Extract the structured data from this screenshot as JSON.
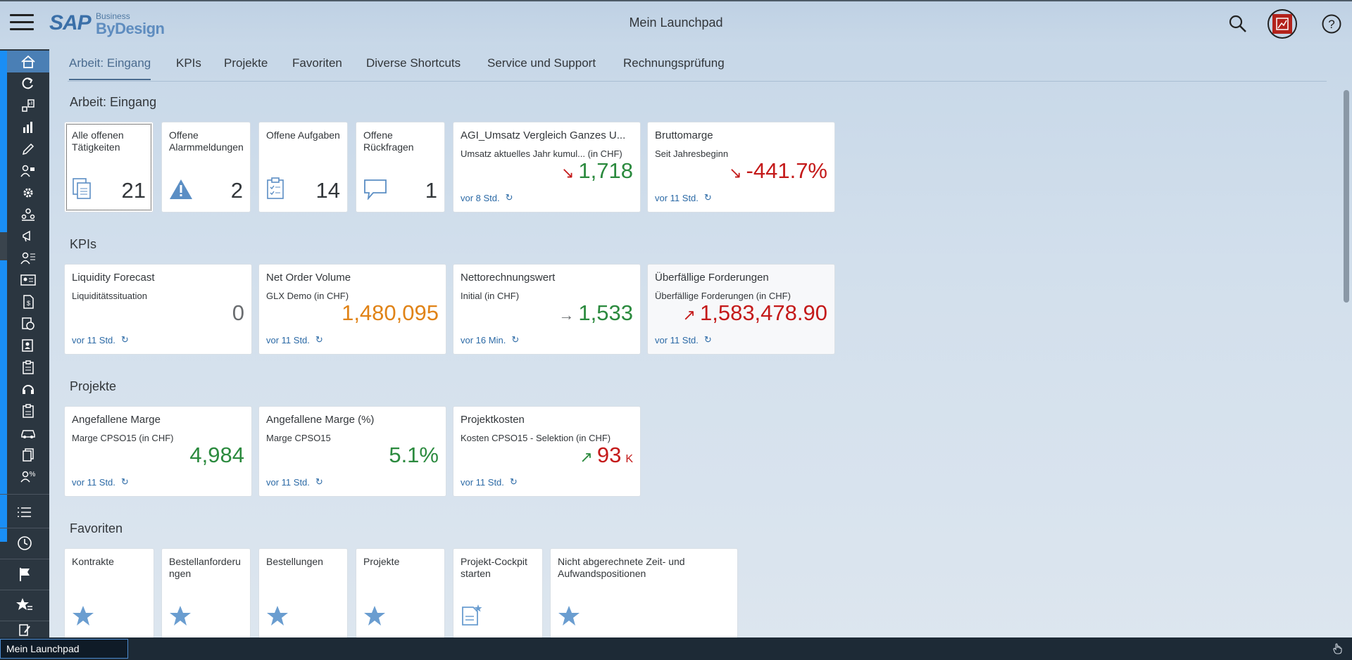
{
  "header": {
    "logo_sap": "SAP",
    "logo_business": "Business",
    "logo_bydesign": "ByDesign",
    "title": "Mein Launchpad"
  },
  "tabs": [
    {
      "label": "Arbeit: Eingang",
      "active": true
    },
    {
      "label": "KPIs"
    },
    {
      "label": "Projekte"
    },
    {
      "label": "Favoriten"
    },
    {
      "label": "Diverse Shortcuts"
    },
    {
      "label": "Service und Support"
    },
    {
      "label": "Rechnungsprüfung"
    }
  ],
  "sections": {
    "arbeit": {
      "title": "Arbeit: Eingang",
      "tiles": [
        {
          "title": "Alle offenen Tätigkeiten",
          "count": "21"
        },
        {
          "title": "Offene Alarmmeldungen",
          "count": "2"
        },
        {
          "title": "Offene Aufgaben",
          "count": "14"
        },
        {
          "title": "Offene Rückfragen",
          "count": "1"
        },
        {
          "title": "AGI_Umsatz Vergleich Ganzes U...",
          "subtitle": "Umsatz aktuelles Jahr kumul... (in CHF)",
          "value": "1,718",
          "footer": "vor 8 Std."
        },
        {
          "title": "Bruttomarge",
          "subtitle": "Seit Jahresbeginn",
          "value": "-441.7%",
          "footer": "vor 11 Std."
        }
      ]
    },
    "kpis": {
      "title": "KPIs",
      "tiles": [
        {
          "title": "Liquidity Forecast",
          "subtitle": "Liquiditätssituation",
          "value": "0",
          "footer": "vor 11 Std."
        },
        {
          "title": "Net Order Volume",
          "subtitle": "GLX Demo (in CHF)",
          "value": "1,480,095",
          "footer": "vor 11 Std."
        },
        {
          "title": "Nettorechnungswert",
          "subtitle": "Initial (in CHF)",
          "value": "1,533",
          "footer": "vor 16 Min."
        },
        {
          "title": "Überfällige Forderungen",
          "subtitle": "Überfällige Forderungen (in CHF)",
          "value": "1,583,478.90",
          "footer": "vor 11 Std."
        }
      ]
    },
    "projekte": {
      "title": "Projekte",
      "tiles": [
        {
          "title": "Angefallene Marge",
          "subtitle": "Marge CPSO15 (in CHF)",
          "value": "4,984",
          "footer": "vor 11 Std."
        },
        {
          "title": "Angefallene Marge (%)",
          "subtitle": "Marge CPSO15",
          "value": "5.1%",
          "footer": "vor 11 Std."
        },
        {
          "title": "Projektkosten",
          "subtitle": "Kosten CPSO15 - Selektion (in CHF)",
          "value": "93",
          "unit": "K",
          "footer": "vor 11 Std."
        }
      ]
    },
    "favoriten": {
      "title": "Favoriten",
      "tiles": [
        {
          "title": "Kontrakte"
        },
        {
          "title": "Bestellanforderungen"
        },
        {
          "title": "Bestellungen"
        },
        {
          "title": "Projekte"
        },
        {
          "title": "Projekt-Cockpit starten"
        },
        {
          "title": "Nicht abgerechnete Zeit- und Aufwandspositionen"
        }
      ]
    }
  },
  "bottom": {
    "tab_label": "Mein Launchpad"
  },
  "colors": {
    "positive": "#2b8a3e",
    "negative": "#c41a1a",
    "neutral": "#6a6d70",
    "critical": "#e08317",
    "accent": "#1a8ef5"
  }
}
